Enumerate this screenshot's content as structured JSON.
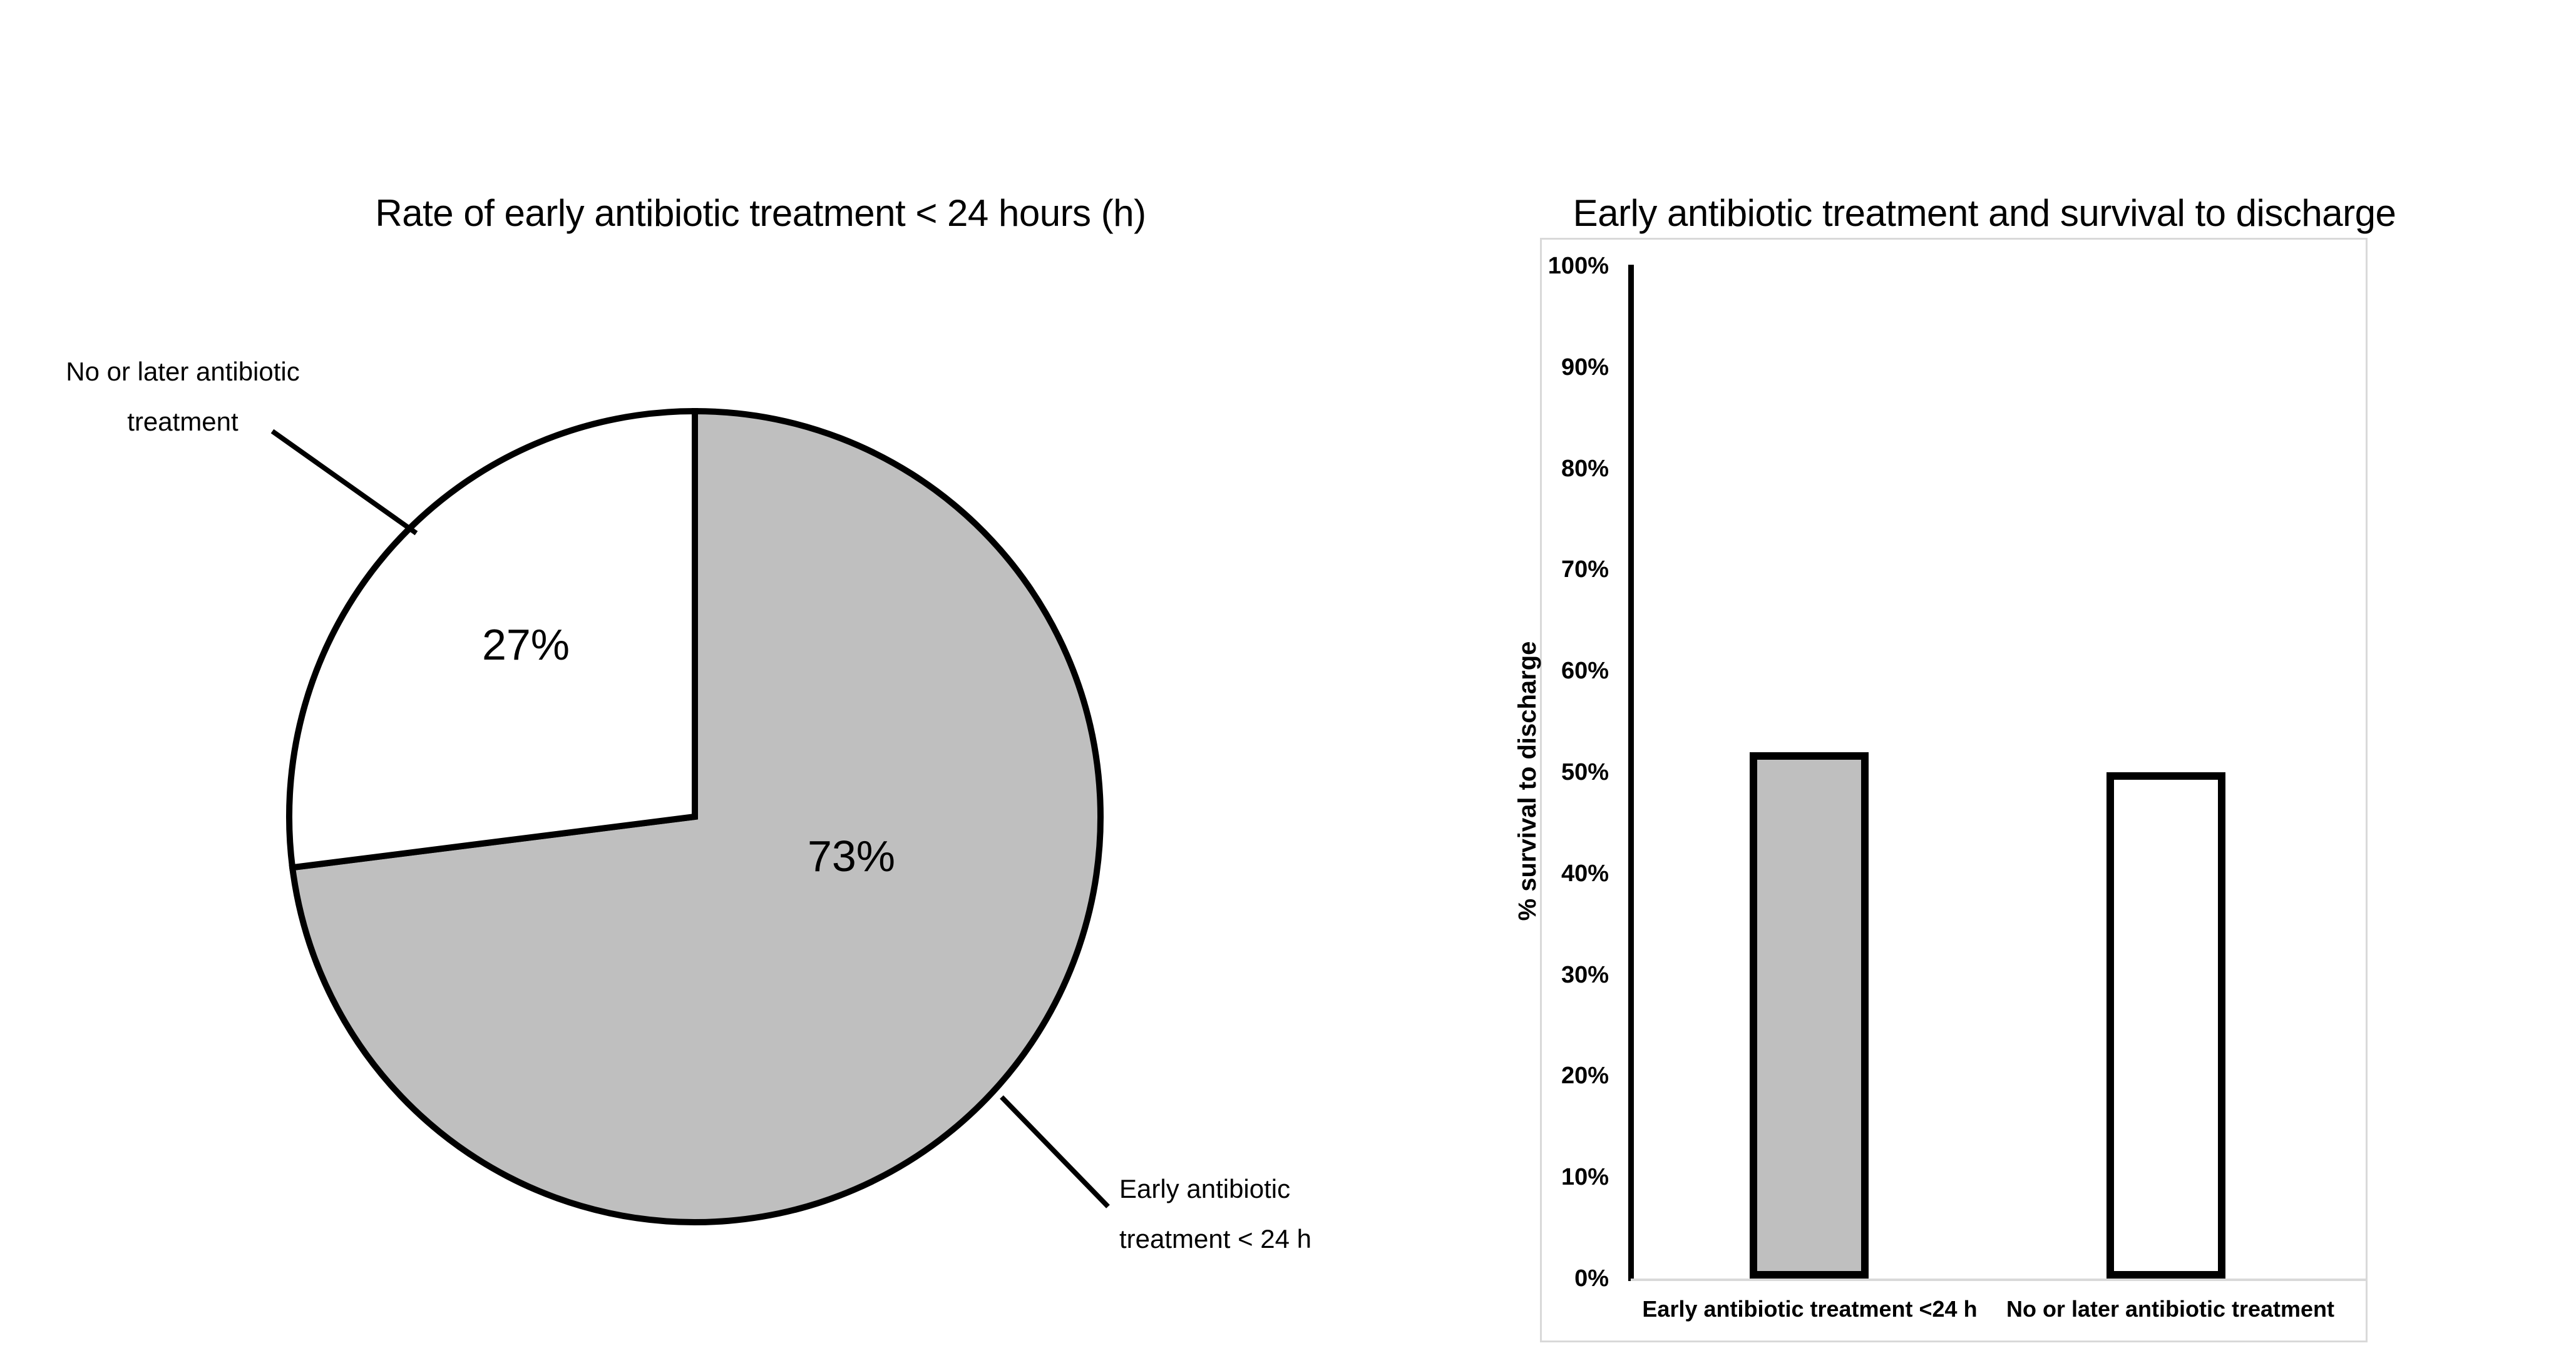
{
  "chart_data": [
    {
      "type": "pie",
      "title": "Rate of early antibiotic treatment < 24 hours (h)",
      "start_angle_deg": 0,
      "direction": "clockwise",
      "slices": [
        {
          "label": "Early antibiotic treatment < 24 h",
          "value": 73,
          "display": "73%",
          "color": "#bfbfbf"
        },
        {
          "label": "No or later antibiotic treatment",
          "value": 27,
          "display": "27%",
          "color": "#ffffff"
        }
      ],
      "outline_color": "#000000",
      "callouts": [
        {
          "line1": "No or later antibiotic",
          "line2": "treatment"
        },
        {
          "line1": "Early antibiotic",
          "line2": "treatment < 24 h"
        }
      ]
    },
    {
      "type": "bar",
      "title": "Early antibiotic treatment and survival to discharge",
      "ylabel": "% survival to discharge",
      "ylim": [
        0,
        100
      ],
      "ytick_labels": [
        "100%",
        "90%",
        "80%",
        "70%",
        "60%",
        "50%",
        "40%",
        "30%",
        "20%",
        "10%",
        "0%"
      ],
      "categories": [
        "Early antibiotic treatment <24 h",
        "No or later antibiotic treatment"
      ],
      "series": [
        {
          "name": "% survival to discharge",
          "values": [
            52,
            50
          ]
        }
      ],
      "bar_colors": [
        "#bfbfbf",
        "#ffffff"
      ],
      "bar_border_color": "#000000",
      "grid": false,
      "legend": false
    }
  ],
  "colors": {
    "background": "#ffffff",
    "text": "#000000",
    "panel_border": "#d9d9d9",
    "axis_line": "#000000",
    "baseline": "#d9d9d9",
    "fill_gray": "#bfbfbf"
  }
}
